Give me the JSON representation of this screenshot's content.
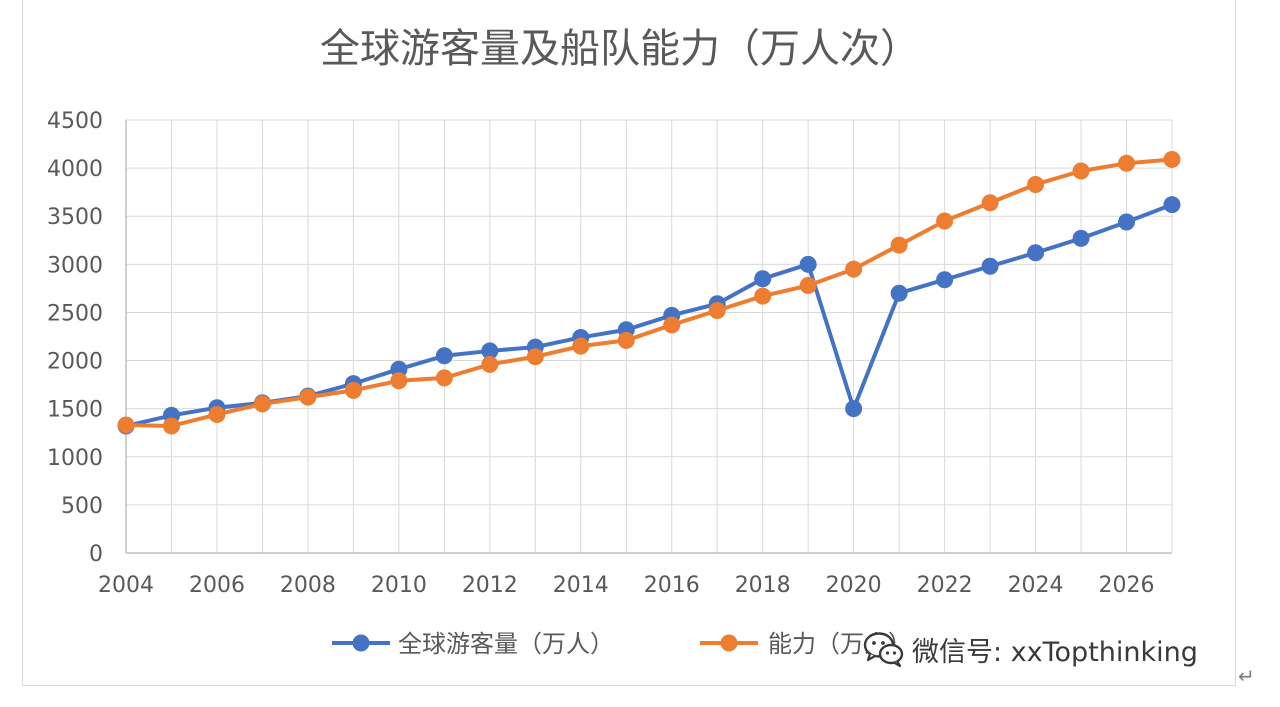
{
  "chart_data": {
    "type": "line",
    "title": "全球游客量及船队能力（万人次）",
    "xlabel": "",
    "ylabel": "",
    "xlim": [
      2004,
      2027
    ],
    "ylim": [
      0,
      4500
    ],
    "x_ticks": [
      2004,
      2006,
      2008,
      2010,
      2012,
      2014,
      2016,
      2018,
      2020,
      2022,
      2024,
      2026
    ],
    "y_ticks": [
      0,
      500,
      1000,
      1500,
      2000,
      2500,
      3000,
      3500,
      4000,
      4500
    ],
    "grid": true,
    "legend_position": "bottom",
    "x": [
      2004,
      2005,
      2006,
      2007,
      2008,
      2009,
      2010,
      2011,
      2012,
      2013,
      2014,
      2015,
      2016,
      2017,
      2018,
      2019,
      2020,
      2021,
      2022,
      2023,
      2024,
      2025,
      2026,
      2027
    ],
    "series": [
      {
        "name": "全球游客量（万人）",
        "color": "#4472c4",
        "values": [
          1320,
          1430,
          1510,
          1560,
          1630,
          1760,
          1910,
          2050,
          2100,
          2140,
          2240,
          2320,
          2470,
          2590,
          2850,
          3000,
          1500,
          2700,
          2840,
          2980,
          3120,
          3270,
          3440,
          3620
        ]
      },
      {
        "name": "能力（万人）",
        "color": "#ed7d31",
        "values": [
          1330,
          1320,
          1440,
          1550,
          1620,
          1690,
          1790,
          1820,
          1960,
          2040,
          2150,
          2210,
          2370,
          2520,
          2670,
          2780,
          2950,
          3200,
          3450,
          3640,
          3830,
          3970,
          4050,
          4090
        ]
      }
    ]
  },
  "watermark": {
    "icon": "wechat-icon",
    "text": "微信号: xxTopthinking"
  },
  "return_mark": "↵"
}
